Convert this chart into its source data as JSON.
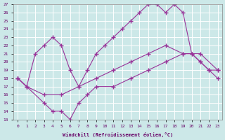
{
  "xlabel": "Windchill (Refroidissement éolien,°C)",
  "bg_color": "#cce8e8",
  "grid_color": "#ffffff",
  "line_color": "#993399",
  "ylim": [
    13,
    27
  ],
  "xlim": [
    0,
    23
  ],
  "yticks": [
    13,
    14,
    15,
    16,
    17,
    18,
    19,
    20,
    21,
    22,
    23,
    24,
    25,
    26,
    27
  ],
  "xticks": [
    0,
    1,
    2,
    3,
    4,
    5,
    6,
    7,
    8,
    9,
    10,
    11,
    12,
    13,
    14,
    15,
    16,
    17,
    18,
    19,
    20,
    21,
    22,
    23
  ],
  "line_upper_x": [
    0,
    1,
    2,
    3,
    4,
    5,
    6,
    7,
    8,
    9,
    10,
    11,
    12,
    13,
    14,
    15,
    16,
    17,
    18,
    19,
    20,
    21,
    22,
    23
  ],
  "line_upper_y": [
    18,
    17,
    21,
    22,
    23,
    22,
    19,
    17,
    19,
    21,
    22,
    23,
    24,
    25,
    26,
    27,
    27,
    26,
    27,
    26,
    21,
    20,
    19,
    18
  ],
  "line_mid_x": [
    0,
    1,
    3,
    5,
    7,
    9,
    11,
    13,
    15,
    17,
    19,
    21,
    23
  ],
  "line_mid_y": [
    18,
    17,
    16,
    16,
    17,
    18,
    19,
    20,
    21,
    22,
    21,
    21,
    19
  ],
  "line_lower_x": [
    0,
    1,
    3,
    4,
    5,
    6,
    7,
    8,
    9,
    11,
    13,
    15,
    17,
    19,
    20,
    21,
    22,
    23
  ],
  "line_lower_y": [
    18,
    17,
    15,
    14,
    14,
    13,
    15,
    16,
    17,
    17,
    18,
    19,
    20,
    21,
    21,
    20,
    19,
    19
  ]
}
